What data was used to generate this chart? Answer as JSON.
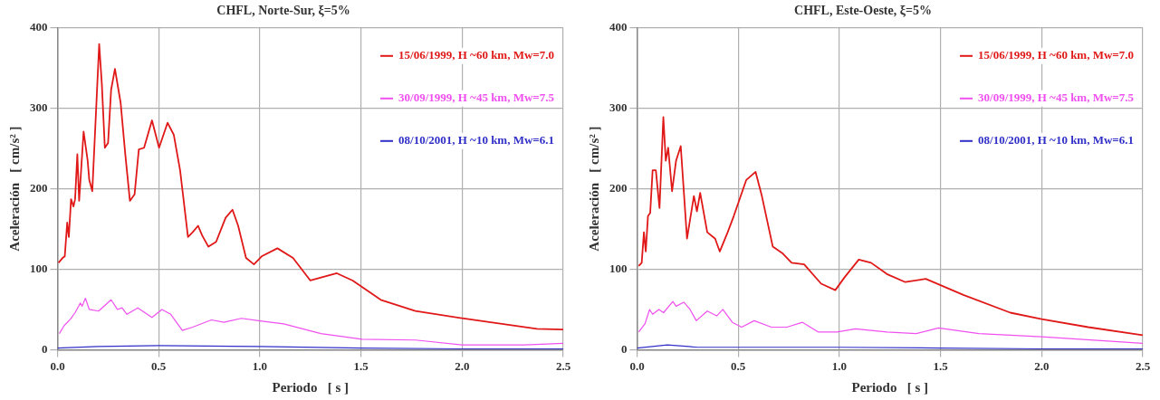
{
  "chart_data": [
    {
      "type": "line",
      "title": "CHFL, Norte-Sur, ξ=5%",
      "xlabel": "Periodo   [ s ]",
      "ylabel": "Aceleración   [ cm/s² ]",
      "xlim": [
        0,
        2.5
      ],
      "ylim": [
        0,
        400
      ],
      "xticks": [
        {
          "value": 0,
          "label": "0.0"
        },
        {
          "value": 0.5,
          "label": "0.5"
        },
        {
          "value": 1,
          "label": "1.0"
        },
        {
          "value": 1.5,
          "label": "1.5"
        },
        {
          "value": 2,
          "label": "2.0"
        },
        {
          "value": 2.5,
          "label": "2.5"
        }
      ],
      "yticks": [
        0,
        100,
        200,
        300,
        400
      ],
      "grid": true,
      "legend": "top right",
      "marker": "none",
      "line_style": "solid",
      "series": [
        {
          "name": "15/06/1999, H ~60 km, Mw=7.0",
          "color": "#e01818",
          "x": [
            0.005,
            0.025,
            0.036,
            0.048,
            0.056,
            0.067,
            0.079,
            0.087,
            0.098,
            0.107,
            0.129,
            0.149,
            0.157,
            0.172,
            0.191,
            0.206,
            0.219,
            0.234,
            0.25,
            0.265,
            0.284,
            0.312,
            0.335,
            0.358,
            0.381,
            0.402,
            0.428,
            0.467,
            0.502,
            0.544,
            0.575,
            0.606,
            0.645,
            0.668,
            0.695,
            0.715,
            0.746,
            0.784,
            0.831,
            0.865,
            0.893,
            0.932,
            0.971,
            1.009,
            1.087,
            1.164,
            1.25,
            1.381,
            1.459,
            1.598,
            1.769,
            2.0,
            2.37,
            2.5
          ],
          "values": [
            108,
            114,
            116,
            158,
            140,
            187,
            178,
            187,
            243,
            185,
            271,
            235,
            211,
            197,
            299,
            380,
            331,
            251,
            257,
            323,
            349,
            307,
            243,
            185,
            193,
            249,
            251,
            285,
            251,
            282,
            267,
            223,
            140,
            146,
            154,
            142,
            128,
            134,
            164,
            174,
            154,
            114,
            106,
            116,
            126,
            114,
            86,
            95,
            86,
            62,
            48,
            39,
            26,
            25
          ]
        },
        {
          "name": "30/09/1999, H ~45 km, Mw=7.5",
          "color": "#f050f0",
          "x": [
            0.009,
            0.033,
            0.064,
            0.087,
            0.113,
            0.122,
            0.138,
            0.157,
            0.203,
            0.265,
            0.296,
            0.319,
            0.343,
            0.397,
            0.467,
            0.516,
            0.56,
            0.617,
            0.668,
            0.761,
            0.823,
            0.909,
            0.994,
            1.118,
            1.242,
            1.302,
            1.506,
            1.77,
            2.0,
            2.31,
            2.5
          ],
          "values": [
            20,
            30,
            38,
            46,
            58,
            54,
            64,
            50,
            48,
            62,
            50,
            52,
            44,
            52,
            40,
            50,
            44,
            24,
            28,
            37,
            34,
            39,
            36,
            32,
            24,
            20,
            13,
            12,
            6,
            6,
            8
          ]
        },
        {
          "name": "08/10/2001, H ~10 km, Mw=6.1",
          "color": "#3030c8",
          "x": [
            0,
            0.2,
            0.5,
            1.0,
            1.5,
            2.0,
            2.5
          ],
          "values": [
            2,
            4,
            5,
            4,
            2,
            1,
            1
          ]
        }
      ]
    },
    {
      "type": "line",
      "title": "CHFL, Este-Oeste, ξ=5%",
      "xlabel": "Periodo   [ s ]",
      "ylabel": "Aceleración   [ cm/s² ]",
      "xlim": [
        0,
        2.5
      ],
      "ylim": [
        0,
        400
      ],
      "xticks": [
        {
          "value": 0,
          "label": "0.0"
        },
        {
          "value": 0.5,
          "label": "0.5"
        },
        {
          "value": 1,
          "label": "1.0"
        },
        {
          "value": 1.5,
          "label": "1.5"
        },
        {
          "value": 2,
          "label": "2.0"
        },
        {
          "value": 2.5,
          "label": "2.5"
        }
      ],
      "yticks": [
        0,
        100,
        200,
        300,
        400
      ],
      "grid": true,
      "legend": "top right",
      "marker": "none",
      "line_style": "solid",
      "series": [
        {
          "name": "15/06/1999, H ~60 km, Mw=7.0",
          "color": "#e01818",
          "x": [
            0.008,
            0.023,
            0.034,
            0.043,
            0.054,
            0.065,
            0.077,
            0.093,
            0.111,
            0.13,
            0.142,
            0.154,
            0.173,
            0.193,
            0.216,
            0.247,
            0.281,
            0.296,
            0.312,
            0.347,
            0.386,
            0.409,
            0.448,
            0.478,
            0.54,
            0.586,
            0.617,
            0.671,
            0.718,
            0.764,
            0.826,
            0.91,
            0.98,
            1.026,
            1.096,
            1.157,
            1.235,
            1.326,
            1.427,
            1.613,
            1.845,
            2.0,
            2.23,
            2.5
          ],
          "values": [
            104,
            108,
            146,
            122,
            166,
            170,
            223,
            223,
            176,
            289,
            235,
            251,
            197,
            235,
            253,
            138,
            191,
            172,
            195,
            146,
            138,
            122,
            146,
            166,
            211,
            221,
            191,
            128,
            120,
            108,
            106,
            82,
            74,
            90,
            112,
            108,
            94,
            84,
            88,
            68,
            46,
            38,
            28,
            18
          ]
        },
        {
          "name": "30/09/1999, H ~45 km, Mw=7.5",
          "color": "#f050f0",
          "x": [
            0.008,
            0.039,
            0.062,
            0.077,
            0.108,
            0.131,
            0.177,
            0.193,
            0.231,
            0.262,
            0.293,
            0.347,
            0.394,
            0.424,
            0.471,
            0.517,
            0.579,
            0.664,
            0.741,
            0.818,
            0.895,
            0.988,
            1.08,
            1.235,
            1.38,
            1.49,
            1.69,
            2.0,
            2.5
          ],
          "values": [
            22,
            32,
            50,
            44,
            50,
            46,
            60,
            54,
            59,
            50,
            36,
            48,
            42,
            50,
            34,
            28,
            36,
            28,
            28,
            34,
            22,
            22,
            26,
            22,
            20,
            27,
            20,
            16,
            8
          ]
        },
        {
          "name": "08/10/2001, H ~10 km, Mw=6.1",
          "color": "#3030c8",
          "x": [
            0,
            0.15,
            0.3,
            1.0,
            1.5,
            2.0,
            2.5
          ],
          "values": [
            2,
            6,
            3,
            3,
            2,
            1,
            1
          ]
        }
      ]
    }
  ]
}
